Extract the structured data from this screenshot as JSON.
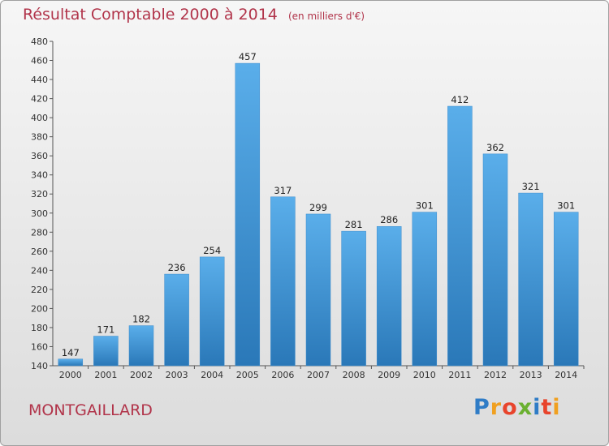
{
  "header": {
    "title": "Résultat Comptable 2000 à 2014",
    "unit": "(en milliers d'€)"
  },
  "footer": {
    "commune": "MONTGAILLARD",
    "logo_letters": [
      "P",
      "r",
      "o",
      "x",
      "i",
      "t",
      "i"
    ]
  },
  "colors": {
    "title": "#b1344a",
    "bar_top": "#5aaeea",
    "bar_bottom": "#2a78b8",
    "logo": [
      "#2f7cc6",
      "#f0a020",
      "#e8442c",
      "#6ab030",
      "#2f7cc6",
      "#e8442c",
      "#f0a020"
    ]
  },
  "chart_data": {
    "type": "bar",
    "categories": [
      "2000",
      "2001",
      "2002",
      "2003",
      "2004",
      "2005",
      "2006",
      "2007",
      "2008",
      "2009",
      "2010",
      "2011",
      "2012",
      "2013",
      "2014"
    ],
    "values": [
      147,
      171,
      182,
      236,
      254,
      457,
      317,
      299,
      281,
      286,
      301,
      412,
      362,
      321,
      301
    ],
    "title": "Résultat Comptable 2000 à 2014",
    "ylim": [
      140,
      480
    ],
    "yticks": [
      140,
      160,
      180,
      200,
      220,
      240,
      260,
      280,
      300,
      320,
      340,
      360,
      380,
      400,
      420,
      440,
      460,
      480
    ],
    "grid": false,
    "data_labels": true
  }
}
